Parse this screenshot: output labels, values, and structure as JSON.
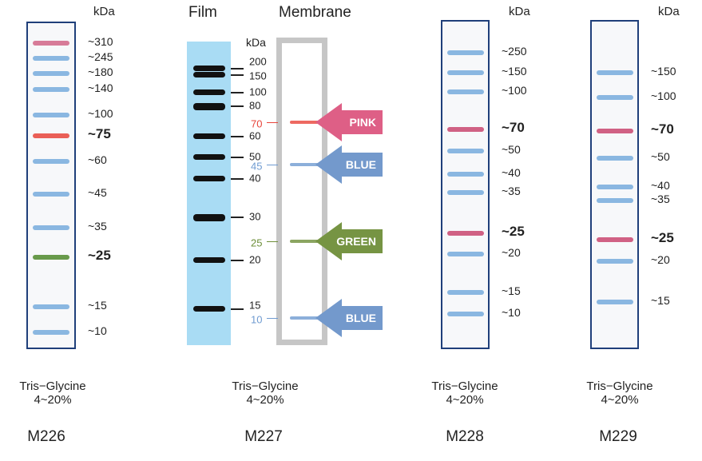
{
  "unit": "kDa",
  "colors": {
    "blue": "#5b9bd5",
    "red": "#e8443a",
    "pink": "#c9466e",
    "green": "#4f8a2b",
    "lane_border": "#1f3f7a"
  },
  "m226": {
    "bands": [
      {
        "label": "~310",
        "color": "pink"
      },
      {
        "label": "~245",
        "color": "blue"
      },
      {
        "label": "~180",
        "color": "blue"
      },
      {
        "label": "~140",
        "color": "blue"
      },
      {
        "label": "~100",
        "color": "blue"
      },
      {
        "label": "~75",
        "color": "red",
        "bold": true
      },
      {
        "label": "~60",
        "color": "blue"
      },
      {
        "label": "~45",
        "color": "blue"
      },
      {
        "label": "~35",
        "color": "blue"
      },
      {
        "label": "~25",
        "color": "green",
        "bold": true
      },
      {
        "label": "~15",
        "color": "blue"
      },
      {
        "label": "~10",
        "color": "blue"
      }
    ],
    "gel": "Tris−Glycine",
    "gradient": "4~20%",
    "model": "M226"
  },
  "m227": {
    "film_title": "Film",
    "membrane_title": "Membrane",
    "film_markers": [
      "200",
      "150",
      "100",
      "80",
      "60",
      "50",
      "40",
      "30",
      "20",
      "15"
    ],
    "membrane_markers": [
      {
        "label": "70",
        "arrow": "PINK",
        "color": "#e8443a",
        "arrow_color": "#de5f86"
      },
      {
        "label": "45",
        "arrow": "BLUE",
        "color": "#6f9bd1",
        "arrow_color": "#7399cc"
      },
      {
        "label": "25",
        "arrow": "GREEN",
        "color": "#6e8f3a",
        "arrow_color": "#769443"
      },
      {
        "label": "10",
        "arrow": "BLUE",
        "color": "#6f9bd1",
        "arrow_color": "#7399cc"
      }
    ],
    "gel": "Tris−Glycine",
    "gradient": "4~20%",
    "model": "M227"
  },
  "m228": {
    "bands": [
      {
        "label": "~250",
        "color": "blue"
      },
      {
        "label": "~150",
        "color": "blue"
      },
      {
        "label": "~100",
        "color": "blue"
      },
      {
        "label": "~70",
        "color": "pink",
        "bold": true
      },
      {
        "label": "~50",
        "color": "blue"
      },
      {
        "label": "~40",
        "color": "blue"
      },
      {
        "label": "~35",
        "color": "blue"
      },
      {
        "label": "~25",
        "color": "pink",
        "bold": true
      },
      {
        "label": "~20",
        "color": "blue"
      },
      {
        "label": "~15",
        "color": "blue"
      },
      {
        "label": "~10",
        "color": "blue"
      }
    ],
    "gel": "Tris−Glycine",
    "gradient": "4~20%",
    "model": "M228"
  },
  "m229": {
    "bands": [
      {
        "label": "~150",
        "color": "blue"
      },
      {
        "label": "~100",
        "color": "blue"
      },
      {
        "label": "~70",
        "color": "pink",
        "bold": true
      },
      {
        "label": "~50",
        "color": "blue"
      },
      {
        "label": "~40",
        "color": "blue"
      },
      {
        "label": "~35",
        "color": "blue"
      },
      {
        "label": "~25",
        "color": "pink",
        "bold": true
      },
      {
        "label": "~20",
        "color": "blue"
      },
      {
        "label": "~15",
        "color": "blue"
      }
    ],
    "gel": "Tris−Glycine",
    "gradient": "4~20%",
    "model": "M229"
  }
}
